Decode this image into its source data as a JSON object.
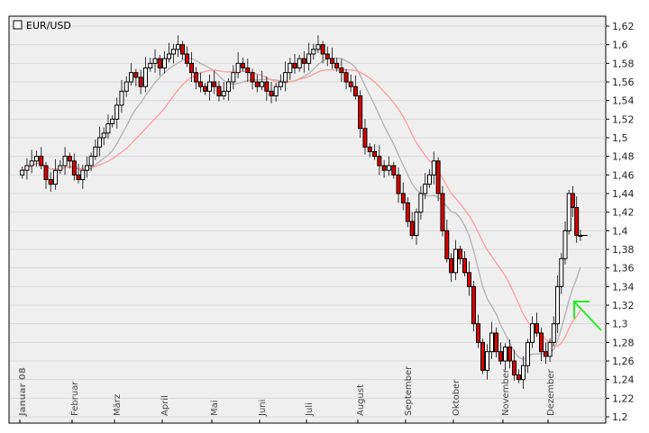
{
  "chart_data": {
    "type": "candlestick",
    "title": "EUR/USD",
    "ylim": [
      1.2,
      1.62
    ],
    "y_ticks": [
      "1,2",
      "1,22",
      "1,24",
      "1,26",
      "1,28",
      "1,3",
      "1,32",
      "1,34",
      "1,36",
      "1,38",
      "1,4",
      "1,42",
      "1,44",
      "1,46",
      "1,48",
      "1,5",
      "1,52",
      "1,54",
      "1,56",
      "1,58",
      "1,6",
      "1,62"
    ],
    "y_tick_values": [
      1.2,
      1.22,
      1.24,
      1.26,
      1.28,
      1.3,
      1.32,
      1.34,
      1.36,
      1.38,
      1.4,
      1.42,
      1.44,
      1.46,
      1.48,
      1.5,
      1.52,
      1.54,
      1.56,
      1.58,
      1.6,
      1.62
    ],
    "grid": true,
    "months": [
      {
        "label": "Januar 08",
        "closes": [
          1.465,
          1.47,
          1.475,
          1.48,
          1.47,
          1.455,
          1.45,
          1.465,
          1.47,
          1.48,
          1.475
        ]
      },
      {
        "label": "Februar",
        "closes": [
          1.46,
          1.455,
          1.465,
          1.47,
          1.48,
          1.49,
          1.5,
          1.505,
          1.515,
          1.52
        ]
      },
      {
        "label": "März",
        "closes": [
          1.535,
          1.55,
          1.56,
          1.57,
          1.565,
          1.555,
          1.575,
          1.58,
          1.585,
          1.575
        ]
      },
      {
        "label": "April",
        "closes": [
          1.585,
          1.59,
          1.595,
          1.6,
          1.59,
          1.58,
          1.57,
          1.56,
          1.555,
          1.55,
          1.56
        ]
      },
      {
        "label": "Mai",
        "closes": [
          1.555,
          1.545,
          1.55,
          1.56,
          1.57,
          1.58,
          1.575,
          1.57,
          1.56,
          1.555
        ]
      },
      {
        "label": "Juni",
        "closes": [
          1.56,
          1.55,
          1.545,
          1.555,
          1.56,
          1.57,
          1.58,
          1.575,
          1.585,
          1.58
        ]
      },
      {
        "label": "Juli",
        "closes": [
          1.59,
          1.595,
          1.6,
          1.59,
          1.585,
          1.58,
          1.575,
          1.57,
          1.56,
          1.555,
          1.545
        ]
      },
      {
        "label": "August",
        "closes": [
          1.51,
          1.49,
          1.485,
          1.48,
          1.47,
          1.465,
          1.47,
          1.46,
          1.44,
          1.43
        ]
      },
      {
        "label": "September",
        "closes": [
          1.41,
          1.395,
          1.42,
          1.44,
          1.45,
          1.46,
          1.475,
          1.44,
          1.4,
          1.37,
          1.355
        ]
      },
      {
        "label": "Oktober",
        "closes": [
          1.38,
          1.37,
          1.355,
          1.34,
          1.3,
          1.28,
          1.25,
          1.27,
          1.29,
          1.27,
          1.26
        ]
      },
      {
        "label": "November",
        "closes": [
          1.275,
          1.26,
          1.245,
          1.24,
          1.255,
          1.28,
          1.3,
          1.29,
          1.27,
          1.265
        ]
      },
      {
        "label": "Dezember",
        "closes": [
          1.28,
          1.3,
          1.34,
          1.37,
          1.4,
          1.44,
          1.425,
          1.395,
          1.395
        ]
      }
    ],
    "moving_averages": [
      {
        "color": "#b0b0b0"
      },
      {
        "color": "#ff9a9a"
      }
    ],
    "colors": {
      "up": "#ffffff",
      "down": "#e00000",
      "outline": "#000000",
      "background": "#efefef",
      "grid": "#d9d9d9",
      "annotation": "#22ee22"
    },
    "annotation": "green-arrow-icon"
  }
}
